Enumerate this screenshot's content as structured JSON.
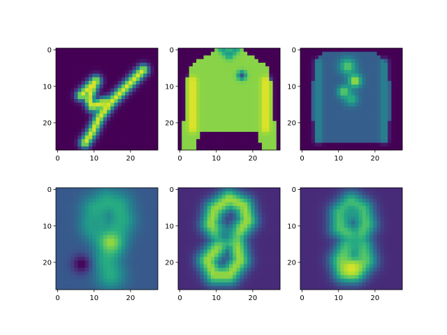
{
  "figure": {
    "background": "#ffffff",
    "colormap": "viridis",
    "colormap_stops": [
      "#440154",
      "#472c7a",
      "#3b518b",
      "#2c718e",
      "#21908d",
      "#27ad81",
      "#5cc863",
      "#aadc32",
      "#fde725"
    ]
  },
  "chart_data": [
    {
      "type": "heatmap",
      "panel": "top-left",
      "content": "handwritten digit 4",
      "image_size": [
        28,
        28
      ],
      "xlim": [
        0,
        27
      ],
      "ylim": [
        27,
        0
      ],
      "xticks": [
        0,
        10,
        20
      ],
      "yticks": [
        0,
        10,
        20
      ],
      "xtick_labels": [
        "0",
        "10",
        "20"
      ],
      "ytick_labels": [
        "0",
        "10",
        "20"
      ],
      "background_value": 0.0,
      "strokes": [
        {
          "points": [
            [
              7,
              13
            ],
            [
              11,
              9
            ],
            [
              10,
              11
            ],
            [
              9,
              14
            ],
            [
              10,
              16
            ],
            [
              13,
              15
            ]
          ],
          "width": 1.1,
          "value": 0.95
        },
        {
          "points": [
            [
              24,
              6
            ],
            [
              19,
              11
            ],
            [
              15,
              15
            ],
            [
              12,
              19
            ],
            [
              10,
              23
            ],
            [
              8,
              26
            ]
          ],
          "width": 1.1,
          "value": 0.95
        }
      ],
      "blobs": []
    },
    {
      "type": "heatmap",
      "panel": "top-middle",
      "content": "jacket",
      "image_size": [
        28,
        28
      ],
      "xlim": [
        0,
        27
      ],
      "ylim": [
        27,
        0
      ],
      "xticks": [
        0,
        10,
        20
      ],
      "yticks": [
        0,
        10,
        20
      ],
      "xtick_labels": [
        "0",
        "10",
        "20"
      ],
      "ytick_labels": [
        "0",
        "10",
        "20"
      ],
      "background_value": 0.0,
      "silhouette": {
        "polygon": [
          [
            11,
            0
          ],
          [
            17,
            0
          ],
          [
            20,
            2
          ],
          [
            25,
            5
          ],
          [
            26,
            12
          ],
          [
            27,
            28
          ],
          [
            23,
            28
          ],
          [
            22,
            23
          ],
          [
            6,
            23
          ],
          [
            5,
            28
          ],
          [
            1,
            28
          ],
          [
            2,
            12
          ],
          [
            3,
            5
          ],
          [
            8,
            2
          ]
        ],
        "value": 0.82
      },
      "strokes": [
        {
          "points": [
            [
              4,
              9
            ],
            [
              4,
              22
            ]
          ],
          "width": 0.9,
          "value": 0.97
        },
        {
          "points": [
            [
              24,
              9
            ],
            [
              24,
              22
            ]
          ],
          "width": 0.9,
          "value": 0.97
        },
        {
          "points": [
            [
              12,
              0
            ],
            [
              14,
              2
            ],
            [
              16,
              0
            ]
          ],
          "width": 0.8,
          "value": 0.55
        }
      ],
      "blobs": [
        {
          "x": 17.5,
          "y": 7.5,
          "r": 0.8,
          "value": 0.25
        }
      ]
    },
    {
      "type": "heatmap",
      "panel": "top-right",
      "content": "patterned sweater",
      "image_size": [
        28,
        28
      ],
      "xlim": [
        0,
        27
      ],
      "ylim": [
        27,
        0
      ],
      "xticks": [
        0,
        10,
        20
      ],
      "yticks": [
        0,
        10,
        20
      ],
      "xtick_labels": [
        "0",
        "10",
        "20"
      ],
      "ytick_labels": [
        "0",
        "10",
        "20"
      ],
      "background_value": 0.0,
      "silhouette": {
        "polygon": [
          [
            7,
            1
          ],
          [
            21,
            1
          ],
          [
            24,
            4
          ],
          [
            25,
            14
          ],
          [
            24,
            26
          ],
          [
            4,
            26
          ],
          [
            3,
            14
          ],
          [
            4,
            4
          ]
        ],
        "value": 0.3
      },
      "strokes": [
        {
          "points": [
            [
              5,
              4
            ],
            [
              5,
              25
            ]
          ],
          "width": 0.8,
          "value": 0.45
        },
        {
          "points": [
            [
              23,
              4
            ],
            [
              23,
              25
            ]
          ],
          "width": 0.8,
          "value": 0.45
        }
      ],
      "blobs": [
        {
          "x": 13,
          "y": 5,
          "r": 1.6,
          "value": 0.75
        },
        {
          "x": 15,
          "y": 9,
          "r": 1.3,
          "value": 0.9
        },
        {
          "x": 12,
          "y": 12,
          "r": 1.2,
          "value": 0.8
        },
        {
          "x": 14,
          "y": 14,
          "r": 1.3,
          "value": 0.65
        }
      ]
    },
    {
      "type": "heatmap",
      "panel": "bottom-left",
      "content": "blurry reconstructed digit",
      "image_size": [
        28,
        28
      ],
      "xlim": [
        0,
        27
      ],
      "ylim": [
        27,
        0
      ],
      "xticks": [
        0,
        10,
        20
      ],
      "yticks": [
        0,
        10,
        20
      ],
      "xtick_labels": [
        "0",
        "10",
        "20"
      ],
      "ytick_labels": [
        "0",
        "10",
        "20"
      ],
      "background_value": 0.28,
      "strokes": [
        {
          "points": [
            [
              11,
              10
            ],
            [
              11,
              6
            ],
            [
              14,
              4
            ],
            [
              17,
              5
            ],
            [
              18,
              9
            ],
            [
              16,
              13
            ],
            [
              15,
              16
            ],
            [
              14,
              20
            ],
            [
              15,
              24
            ]
          ],
          "width": 2.8,
          "value": 0.62
        },
        {
          "points": [
            [
              11,
              10
            ],
            [
              12,
              13
            ],
            [
              15,
              14
            ]
          ],
          "width": 2.2,
          "value": 0.55
        }
      ],
      "blobs": [
        {
          "x": 15,
          "y": 15,
          "r": 2.0,
          "value": 0.85
        },
        {
          "x": 7,
          "y": 21,
          "r": 1.8,
          "value": 0.0
        }
      ]
    },
    {
      "type": "heatmap",
      "panel": "bottom-middle",
      "content": "reconstructed digit 8",
      "image_size": [
        28,
        28
      ],
      "xlim": [
        0,
        27
      ],
      "ylim": [
        27,
        0
      ],
      "xticks": [
        0,
        10,
        20
      ],
      "yticks": [
        0,
        10,
        20
      ],
      "xtick_labels": [
        "0",
        "10",
        "20"
      ],
      "ytick_labels": [
        "0",
        "10",
        "20"
      ],
      "background_value": 0.12,
      "strokes": [
        {
          "points": [
            [
              12,
              14
            ],
            [
              9,
              10
            ],
            [
              10,
              6
            ],
            [
              14,
              3
            ],
            [
              18,
              5
            ],
            [
              19,
              9
            ],
            [
              16,
              13
            ],
            [
              12,
              15
            ],
            [
              8,
              20
            ],
            [
              10,
              24
            ],
            [
              14,
              24
            ],
            [
              17,
              20
            ],
            [
              16,
              15
            ],
            [
              12,
              14
            ]
          ],
          "width": 2.0,
          "value": 0.85
        }
      ],
      "blobs": [
        {
          "x": 13,
          "y": 13,
          "r": 1.8,
          "value": 0.45
        }
      ]
    },
    {
      "type": "heatmap",
      "panel": "bottom-right",
      "content": "reconstructed digit 8",
      "image_size": [
        28,
        28
      ],
      "xlim": [
        0,
        27
      ],
      "ylim": [
        27,
        0
      ],
      "xticks": [
        0,
        10,
        20
      ],
      "yticks": [
        0,
        10,
        20
      ],
      "xtick_labels": [
        "0",
        "10",
        "20"
      ],
      "ytick_labels": [
        "0",
        "10",
        "20"
      ],
      "background_value": 0.12,
      "strokes": [
        {
          "points": [
            [
              15,
              14
            ],
            [
              11,
              11
            ],
            [
              11,
              7
            ],
            [
              14,
              4
            ],
            [
              17,
              6
            ],
            [
              18,
              10
            ],
            [
              16,
              14
            ],
            [
              13,
              16
            ],
            [
              11,
              20
            ],
            [
              12,
              23
            ],
            [
              15,
              23
            ],
            [
              18,
              20
            ],
            [
              17,
              16
            ],
            [
              15,
              14
            ]
          ],
          "width": 2.2,
          "value": 0.72
        }
      ],
      "blobs": [
        {
          "x": 14,
          "y": 22,
          "r": 2.2,
          "value": 0.95
        },
        {
          "x": 15,
          "y": 15,
          "r": 1.6,
          "value": 0.6
        },
        {
          "x": 14,
          "y": 7,
          "r": 1.6,
          "value": 0.55
        }
      ]
    }
  ]
}
